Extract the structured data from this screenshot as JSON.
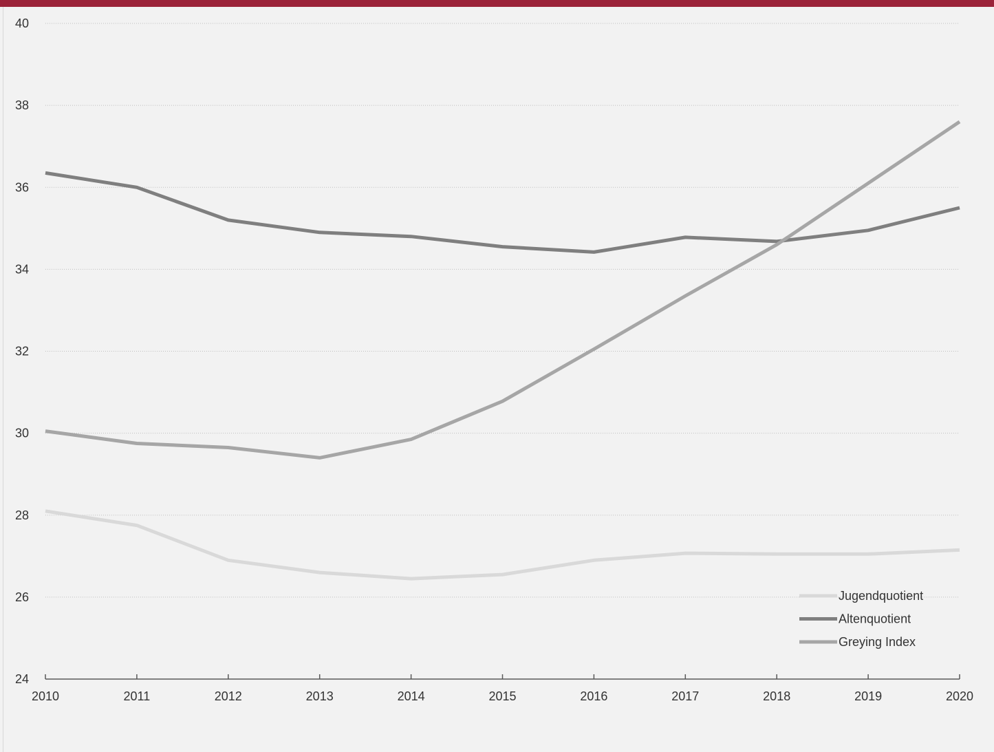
{
  "chart_data": {
    "type": "line",
    "title": "",
    "xlabel": "",
    "ylabel": "",
    "x": [
      "2010",
      "2011",
      "2012",
      "2013",
      "2014",
      "2015",
      "2016",
      "2017",
      "2018",
      "2019",
      "2020"
    ],
    "ylim": [
      24,
      40
    ],
    "yticks": [
      "24",
      "26",
      "28",
      "30",
      "32",
      "34",
      "36",
      "38",
      "40"
    ],
    "grid": true,
    "legend_position": "bottom-right",
    "series": [
      {
        "name": "Jugendquotient",
        "color": "#d9d9d9",
        "values": [
          28.1,
          27.75,
          26.9,
          26.6,
          26.45,
          26.55,
          26.9,
          27.07,
          27.05,
          27.05,
          27.15
        ]
      },
      {
        "name": "Altenquotient",
        "color": "#7f7f7f",
        "values": [
          36.35,
          36.0,
          35.2,
          34.9,
          34.8,
          34.55,
          34.42,
          34.78,
          34.68,
          34.95,
          35.5
        ]
      },
      {
        "name": "Greying Index",
        "color": "#a6a6a6",
        "values": [
          30.05,
          29.75,
          29.65,
          29.4,
          29.85,
          30.78,
          32.05,
          33.35,
          34.6,
          36.1,
          37.6
        ]
      }
    ]
  }
}
